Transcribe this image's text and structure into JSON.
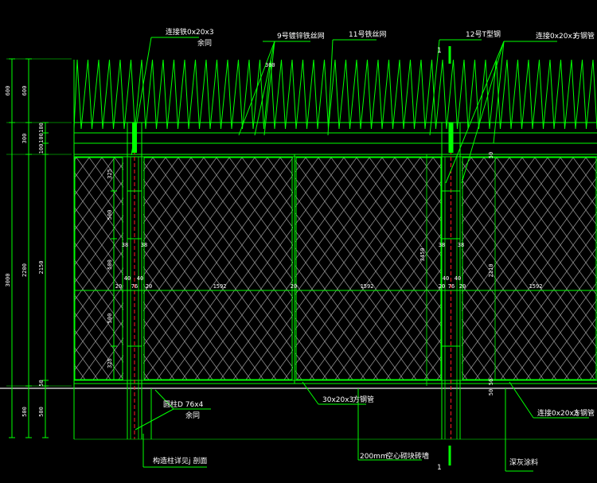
{
  "colors": {
    "line": "#00ff00",
    "mesh": "#9a9a9a",
    "axis": "#ff2020",
    "ground": "#c8c8c8",
    "text": "#ffffff"
  },
  "labels": {
    "connect_iron_top": "连接铁0x20x3",
    "same_top": "余同",
    "wire_mesh_9": "9号镀锌铁丝网",
    "wire_11": "11号铁丝网",
    "t_steel_12": "12号T型钢",
    "connect_tube_top": "连接0x20x3",
    "square_tube_top": "方钢管",
    "spacing_300": "300",
    "section_mark_top": "1",
    "section_mark_bottom": "1",
    "round_post": "圆柱D 76x4",
    "same_bottom": "余同",
    "tube_30x20": "30x20x3",
    "square_tube_mid": "方钢管",
    "connect_tube_bottom": "连接0x20x3",
    "square_tube_bottom": "方钢管",
    "column_detail": "构造柱详见j 剖面",
    "wall_200": "200mm",
    "wall_type": "空心砌块砖墙",
    "paint": "深灰涂料"
  },
  "dimensions": {
    "outer": [
      "600",
      "3000"
    ],
    "middle": [
      "600",
      "300",
      "2200",
      "500"
    ],
    "inner": [
      "100",
      "100",
      "100",
      "2150",
      "50",
      "500"
    ],
    "post_vertical": [
      "325",
      "500",
      "500",
      "500",
      "325"
    ],
    "post_gap": [
      "38",
      "38"
    ],
    "post_section": [
      "40",
      "40",
      "20",
      "76",
      "20"
    ],
    "panel_width": [
      "1592",
      "20",
      "1592"
    ],
    "right_post_gap": [
      "38",
      "38"
    ],
    "right_post_section": [
      "40",
      "40",
      "20",
      "76",
      "20"
    ],
    "right_panel_width": "1592",
    "right_vertical": [
      "3450",
      "2110",
      "50",
      "50",
      "50"
    ]
  }
}
